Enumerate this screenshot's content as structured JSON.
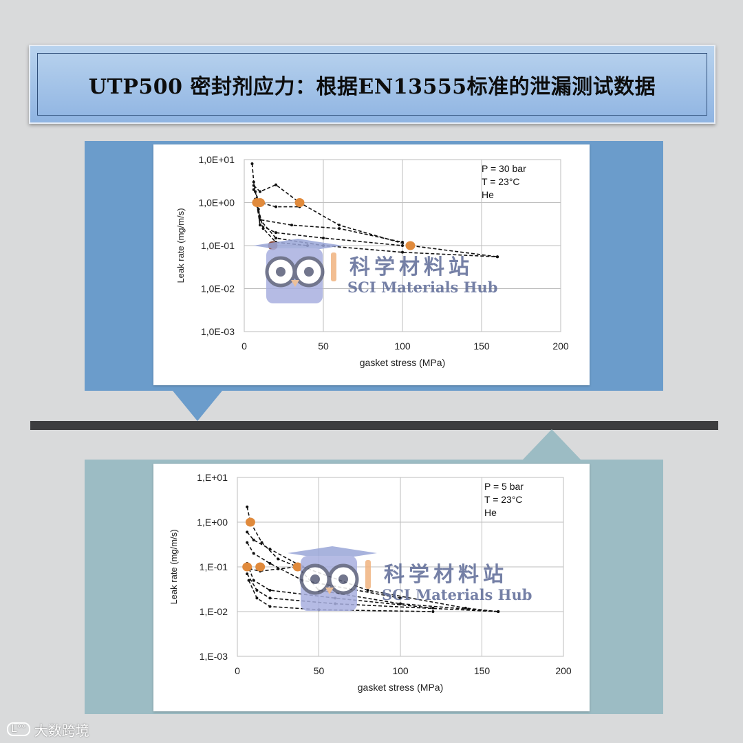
{
  "page": {
    "title": "UTP500 密封剂应力：根据EN13555标准的泄漏测试数据",
    "footer_logo_mark": "L°°",
    "footer_logo_text": "大数跨境"
  },
  "colors": {
    "background": "#d9dadb",
    "banner": "#9fc0e8",
    "top_panel": "#6b9ccb",
    "bottom_panel": "#9cbcc4",
    "divider": "#3d3d3f",
    "marker_orange": "#e08a3c",
    "marker_dark": "#8a4a3a",
    "line": "#111111"
  },
  "watermark": {
    "cn": "科学材料站",
    "en": "SCI Materials Hub",
    "icon": "owl-graduate-icon"
  },
  "chart_data": [
    {
      "type": "line",
      "scale_y": "log",
      "xlabel": "gasket stress (MPa)",
      "ylabel": "Leak rate (mg/m/s)",
      "xlim": [
        0,
        200
      ],
      "ylim": [
        0.001,
        10
      ],
      "x_ticks": [
        "0",
        "50",
        "100",
        "150",
        "200"
      ],
      "y_ticks": [
        "1,0E+01",
        "1,0E+00",
        "1,0E-01",
        "1,0E-02",
        "1,0E-03"
      ],
      "grid": true,
      "annotations": [
        "P = 30 bar",
        "T = 23°C",
        "He"
      ],
      "series": [
        {
          "x": [
            5,
            6,
            7,
            8,
            10,
            20,
            50,
            100,
            160
          ],
          "y": [
            8,
            3,
            1.8,
            1.2,
            0.4,
            0.15,
            0.1,
            0.07,
            0.055
          ]
        },
        {
          "x": [
            6,
            10,
            20,
            35,
            60,
            105,
            160
          ],
          "y": [
            2.5,
            1.8,
            2.6,
            1.0,
            0.3,
            0.1,
            0.055
          ]
        },
        {
          "x": [
            6,
            10,
            20,
            35
          ],
          "y": [
            2.0,
            1.0,
            0.8,
            0.8
          ]
        },
        {
          "x": [
            7,
            10,
            30,
            60,
            100
          ],
          "y": [
            1.2,
            0.4,
            0.3,
            0.25,
            0.12
          ]
        },
        {
          "x": [
            8,
            10,
            20,
            50,
            100
          ],
          "y": [
            0.9,
            0.3,
            0.2,
            0.15,
            0.1
          ]
        },
        {
          "x": [
            9,
            12,
            20,
            40
          ],
          "y": [
            0.7,
            0.25,
            0.12,
            0.1
          ]
        }
      ],
      "markers": [
        {
          "x": 8,
          "y": 1.0,
          "kind": "orange"
        },
        {
          "x": 10,
          "y": 1.0,
          "kind": "orange"
        },
        {
          "x": 35,
          "y": 1.0,
          "kind": "orange"
        },
        {
          "x": 105,
          "y": 0.1,
          "kind": "orange"
        },
        {
          "x": 18,
          "y": 0.1,
          "kind": "dark"
        }
      ]
    },
    {
      "type": "line",
      "scale_y": "log",
      "xlabel": "gasket stress (MPa)",
      "ylabel": "Leak rate (mg/m/s)",
      "xlim": [
        0,
        200
      ],
      "ylim": [
        0.001,
        10
      ],
      "x_ticks": [
        "0",
        "50",
        "100",
        "150",
        "200"
      ],
      "y_ticks": [
        "1,E+01",
        "1,E+00",
        "1,E-01",
        "1,E-02",
        "1,E-03"
      ],
      "grid": true,
      "annotations": [
        "P = 5 bar",
        "T = 23°C",
        "He"
      ],
      "series": [
        {
          "x": [
            6,
            8,
            15,
            25,
            37,
            50,
            100,
            160
          ],
          "y": [
            2.2,
            1.0,
            0.35,
            0.15,
            0.1,
            0.03,
            0.015,
            0.01
          ]
        },
        {
          "x": [
            6,
            10,
            20,
            40,
            80,
            140,
            160
          ],
          "y": [
            0.6,
            0.4,
            0.25,
            0.1,
            0.03,
            0.012,
            0.01
          ]
        },
        {
          "x": [
            6,
            10,
            20,
            40,
            100
          ],
          "y": [
            0.35,
            0.2,
            0.12,
            0.05,
            0.02
          ]
        },
        {
          "x": [
            4,
            8,
            14,
            25,
            37
          ],
          "y": [
            0.1,
            0.09,
            0.08,
            0.09,
            0.1
          ]
        },
        {
          "x": [
            6,
            10,
            20,
            60,
            120
          ],
          "y": [
            0.12,
            0.05,
            0.03,
            0.02,
            0.012
          ]
        },
        {
          "x": [
            6,
            12,
            20,
            60,
            160
          ],
          "y": [
            0.07,
            0.03,
            0.02,
            0.015,
            0.01
          ]
        },
        {
          "x": [
            7,
            12,
            20,
            50,
            120
          ],
          "y": [
            0.05,
            0.02,
            0.013,
            0.011,
            0.01
          ]
        }
      ],
      "markers": [
        {
          "x": 8,
          "y": 1.0,
          "kind": "orange"
        },
        {
          "x": 6,
          "y": 0.1,
          "kind": "orange"
        },
        {
          "x": 14,
          "y": 0.1,
          "kind": "orange"
        },
        {
          "x": 37,
          "y": 0.1,
          "kind": "orange"
        }
      ]
    }
  ]
}
